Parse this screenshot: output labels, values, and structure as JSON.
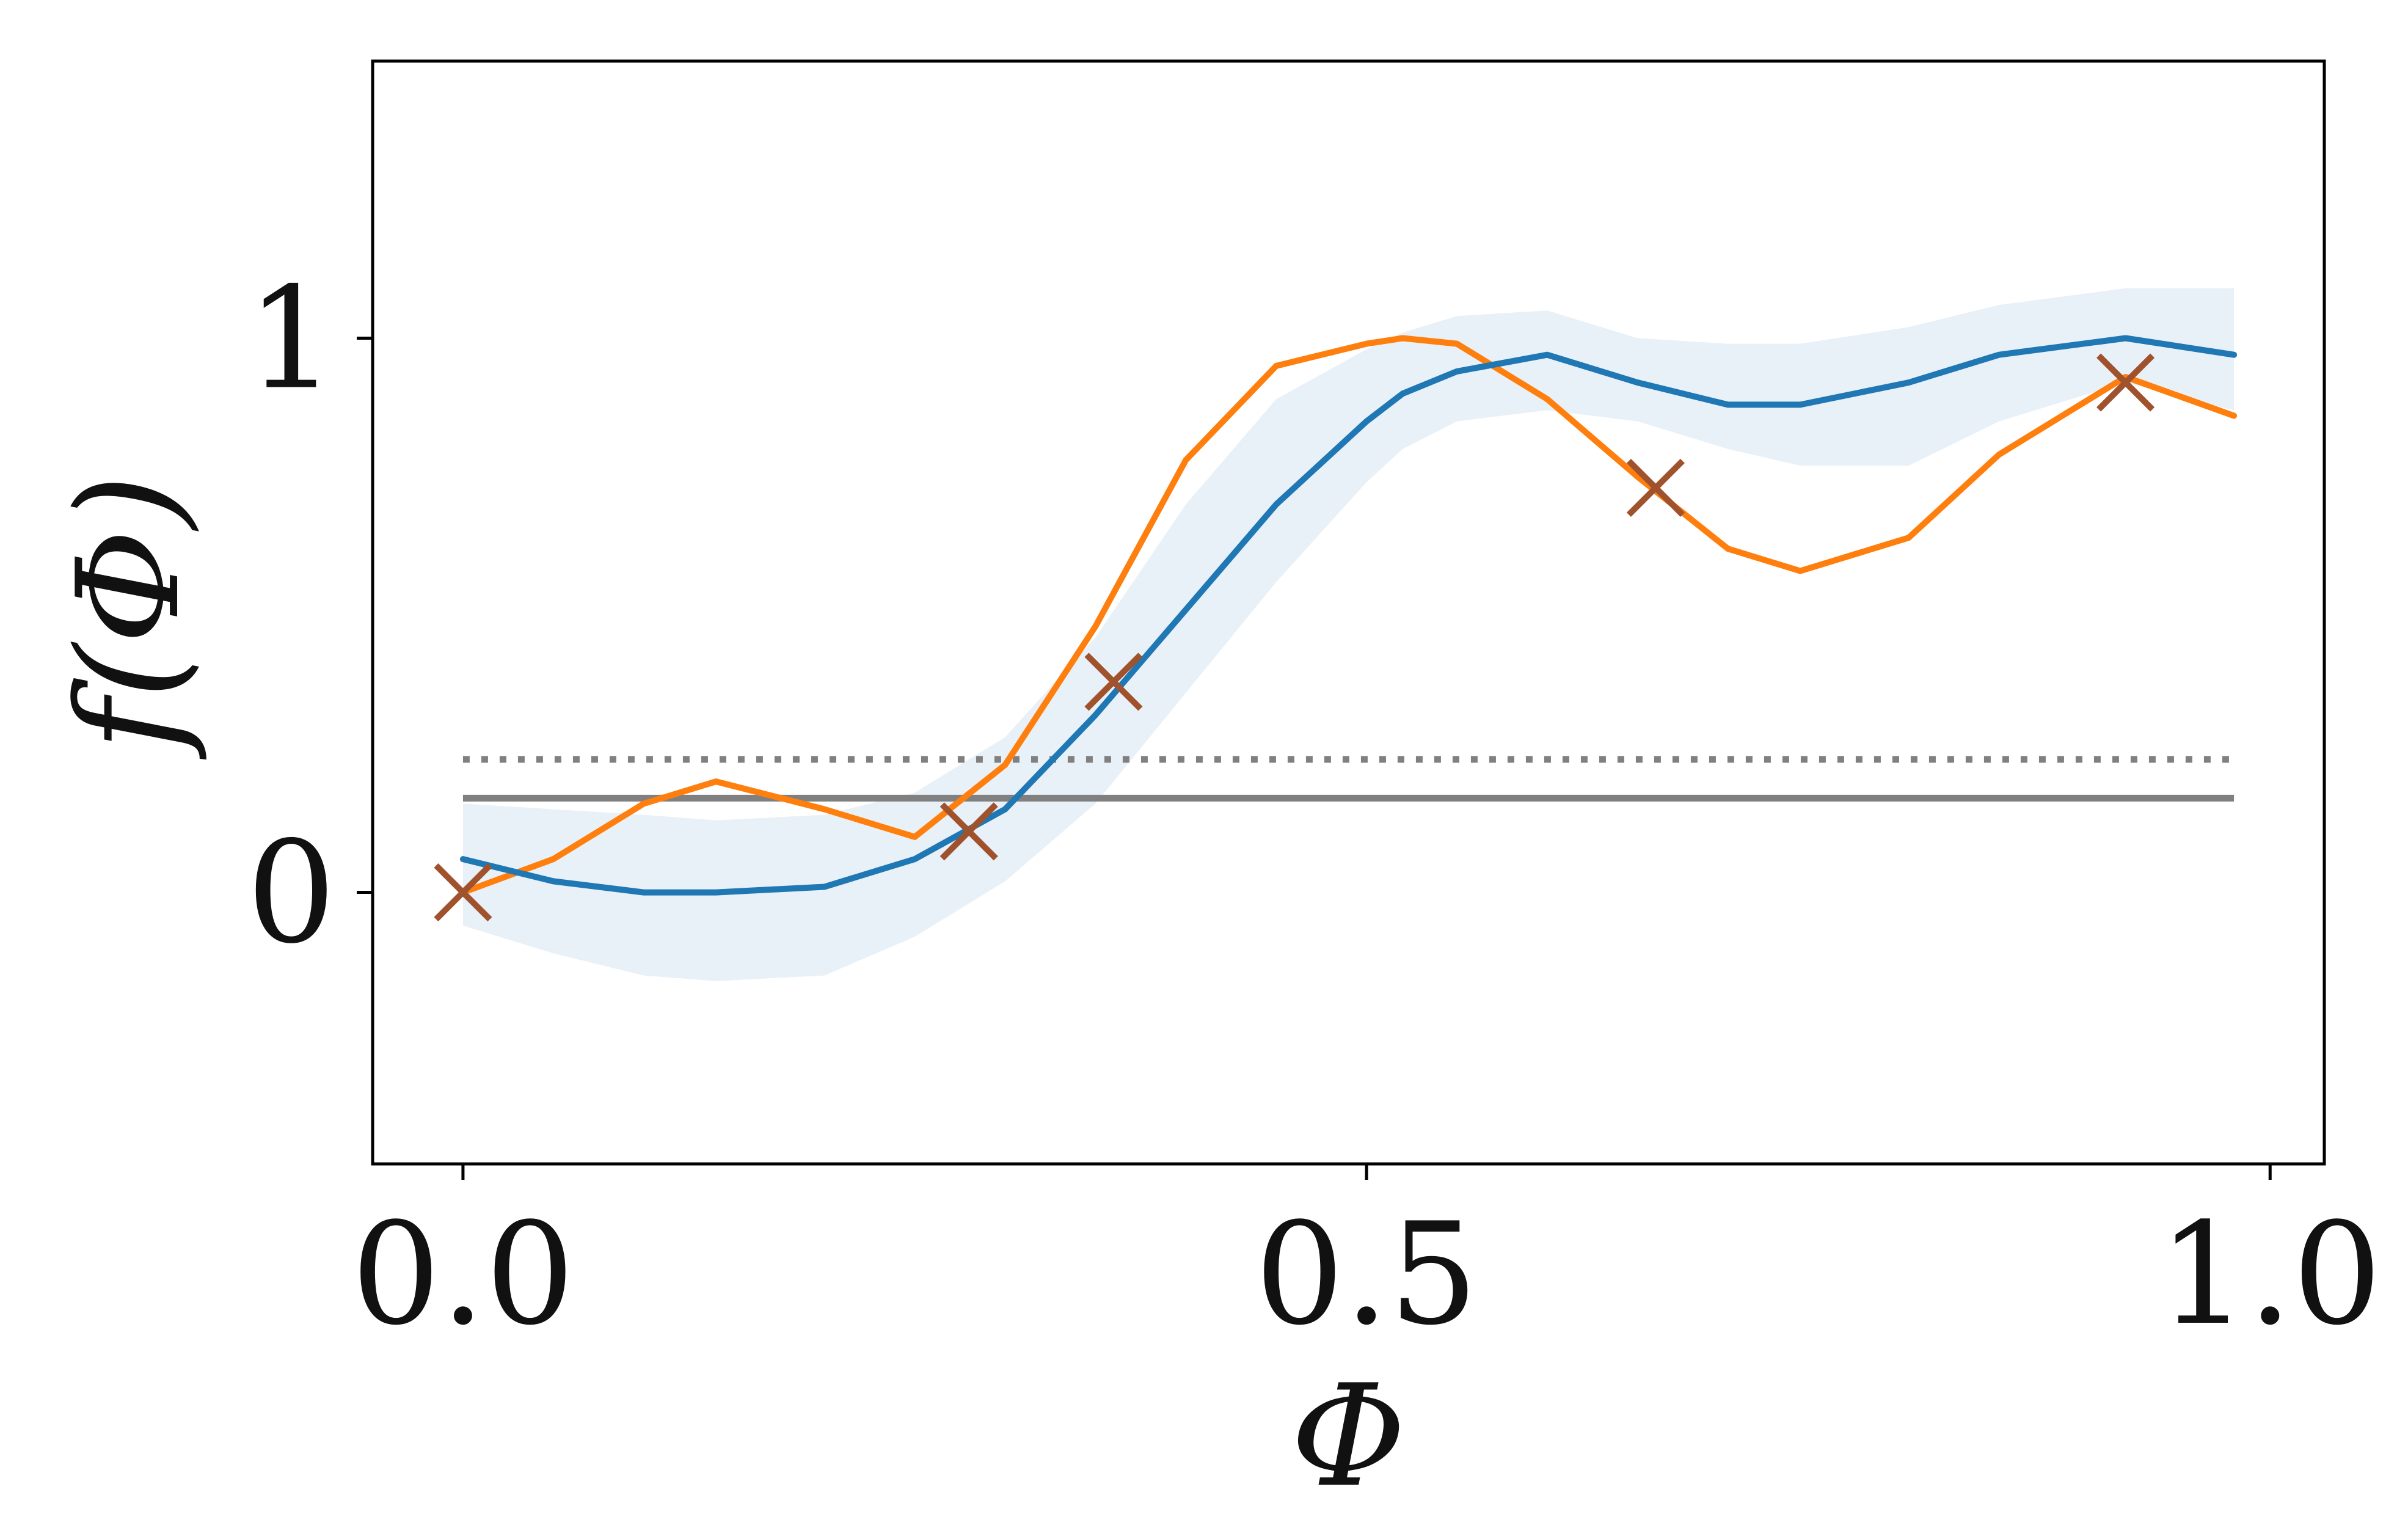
{
  "chart_data": {
    "type": "line",
    "title": "",
    "xlabel": "Φ",
    "ylabel": "f(Φ)",
    "xlim": [
      -0.05,
      1.03
    ],
    "ylim": [
      -0.49,
      1.5
    ],
    "x_ticks": [
      0.0,
      0.5,
      1.0
    ],
    "x_tick_labels": [
      "0.0",
      "0.5",
      "1.0"
    ],
    "y_ticks": [
      0,
      1
    ],
    "y_tick_labels": [
      "0",
      "1"
    ],
    "grid": false,
    "legend": "none",
    "colors": {
      "mean": "#1f77b4",
      "true": "#ff7f0e",
      "band": "#e8f0f8",
      "observations": "#a0522d",
      "reference": "#808080"
    },
    "x": [
      0.0,
      0.05,
      0.1,
      0.14,
      0.2,
      0.25,
      0.3,
      0.35,
      0.4,
      0.45,
      0.5,
      0.52,
      0.55,
      0.6,
      0.65,
      0.7,
      0.74,
      0.8,
      0.85,
      0.92,
      0.98
    ],
    "series": [
      {
        "role": "true-function",
        "y": [
          0.0,
          0.06,
          0.16,
          0.2,
          0.15,
          0.1,
          0.23,
          0.48,
          0.78,
          0.95,
          0.99,
          1.0,
          0.99,
          0.89,
          0.75,
          0.62,
          0.58,
          0.64,
          0.79,
          0.93,
          0.86
        ]
      },
      {
        "role": "posterior-mean",
        "y": [
          0.06,
          0.02,
          0.0,
          0.0,
          0.01,
          0.06,
          0.15,
          0.32,
          0.51,
          0.7,
          0.85,
          0.9,
          0.94,
          0.97,
          0.92,
          0.88,
          0.88,
          0.92,
          0.97,
          1.0,
          0.97
        ]
      }
    ],
    "band": {
      "upper": [
        0.16,
        0.15,
        0.14,
        0.13,
        0.14,
        0.18,
        0.28,
        0.46,
        0.7,
        0.89,
        0.98,
        1.01,
        1.04,
        1.05,
        1.0,
        0.99,
        0.99,
        1.02,
        1.06,
        1.09,
        1.09
      ],
      "lower": [
        -0.06,
        -0.11,
        -0.15,
        -0.16,
        -0.15,
        -0.08,
        0.02,
        0.16,
        0.36,
        0.56,
        0.74,
        0.8,
        0.85,
        0.87,
        0.85,
        0.8,
        0.77,
        0.77,
        0.85,
        0.92,
        0.87
      ]
    },
    "observations": [
      {
        "x": 0.0,
        "y": 0.0
      },
      {
        "x": 0.28,
        "y": 0.11
      },
      {
        "x": 0.36,
        "y": 0.38
      },
      {
        "x": 0.66,
        "y": 0.73
      },
      {
        "x": 0.92,
        "y": 0.92
      }
    ],
    "reference_lines": [
      {
        "y": 0.17,
        "style": "solid"
      },
      {
        "y": 0.24,
        "style": "dotted"
      }
    ]
  }
}
